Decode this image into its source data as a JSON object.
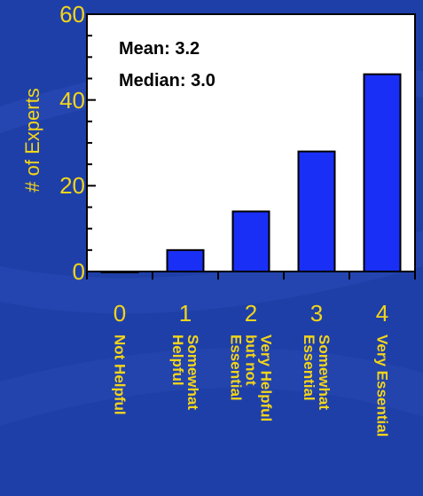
{
  "colors": {
    "background": "#1f3fa8",
    "plot_area": "#ffffff",
    "bar_fill": "#1a2ff5",
    "text_accent": "#f2d51a"
  },
  "chart_data": {
    "type": "bar",
    "categories": [
      "0",
      "1",
      "2",
      "3",
      "4"
    ],
    "category_descriptions": [
      "Not Helpful",
      "Somewhat\nHelpful",
      "Very Helpful\nbut not\nEssential",
      "Somewhat\nEssential",
      "Very Essential"
    ],
    "values": [
      0,
      5,
      14,
      28,
      46
    ],
    "ylabel": "# of Experts",
    "xlabel": "",
    "title": "",
    "ylim": [
      0,
      60
    ],
    "yticks": [
      "0",
      "20",
      "40",
      "60"
    ],
    "annotations": [
      "Mean:  3.2",
      "Median: 3.0"
    ],
    "grid": false,
    "legend": "none"
  }
}
